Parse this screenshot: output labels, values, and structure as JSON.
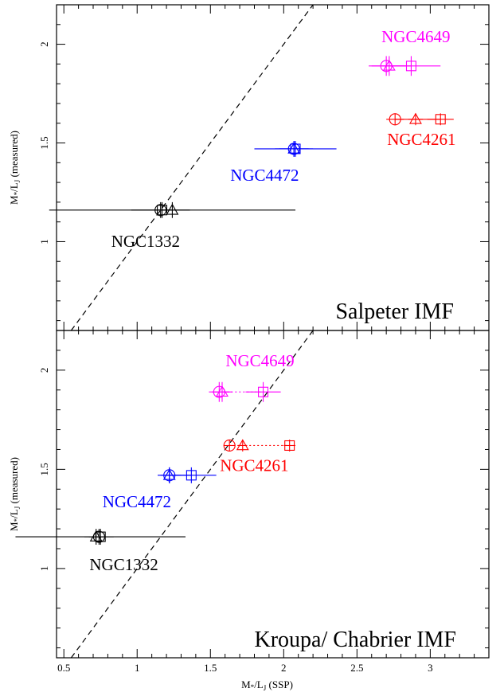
{
  "chart_data": [
    {
      "type": "scatter",
      "panel": "top",
      "label": "Salpeter IMF",
      "xlim": [
        0.45,
        3.4
      ],
      "ylim": [
        0.55,
        2.2
      ],
      "xticks": [
        0.5,
        1,
        1.5,
        2,
        2.5,
        3
      ],
      "yticks": [
        1,
        1.5,
        2
      ],
      "ytick_labels": [
        "1",
        "1.5",
        "2"
      ],
      "ylabel": "M*/LJ (measured)",
      "grid": false,
      "one_to_one_line": true,
      "galaxies": [
        {
          "name": "NGC4649",
          "color": "#ff00ff",
          "y": 1.89,
          "yerr": 0.05,
          "connector": "solid",
          "points": [
            {
              "marker": "circle",
              "x": 2.7,
              "xerr": 0.12
            },
            {
              "marker": "triangle",
              "x": 2.72,
              "xerr": 0.12
            },
            {
              "marker": "square",
              "x": 2.87,
              "xerr": 0.2
            }
          ]
        },
        {
          "name": "NGC4261",
          "color": "#ff0000",
          "y": 1.62,
          "yerr": 0.03,
          "connector": "solid",
          "points": [
            {
              "marker": "circle",
              "x": 2.76,
              "xerr": 0.06
            },
            {
              "marker": "triangle",
              "x": 2.9,
              "xerr": 0.05
            },
            {
              "marker": "square",
              "x": 3.07,
              "xerr": 0.09
            }
          ]
        },
        {
          "name": "NGC4472",
          "color": "#0000ff",
          "y": 1.47,
          "yerr": 0.04,
          "connector": "solid",
          "points": [
            {
              "marker": "circle",
              "x": 2.07,
              "xerr": 0.13
            },
            {
              "marker": "triangle",
              "x": 2.07,
              "xerr": 0.1
            },
            {
              "marker": "square",
              "x": 2.08,
              "xerr": 0.28
            }
          ]
        },
        {
          "name": "NGC1332",
          "color": "#000000",
          "y": 1.16,
          "yerr": 0.04,
          "connector": "solid",
          "points": [
            {
              "marker": "circle",
              "x": 1.16,
              "xerr": 0.2
            },
            {
              "marker": "triangle",
              "x": 1.24,
              "xerr": 0.84
            },
            {
              "marker": "square",
              "x": 1.17,
              "xerr": 0.05
            }
          ]
        }
      ]
    },
    {
      "type": "scatter",
      "panel": "bottom",
      "label": "Kroupa/ Chabrier IMF",
      "xlim": [
        0.45,
        3.4
      ],
      "ylim": [
        0.55,
        2.2
      ],
      "xticks": [
        0.5,
        1,
        1.5,
        2,
        2.5,
        3
      ],
      "xtick_labels": [
        "0.5",
        "1",
        "1.5",
        "2",
        "2.5",
        "3"
      ],
      "yticks": [
        1,
        1.5,
        2
      ],
      "ytick_labels": [
        "1",
        "1.5",
        "2"
      ],
      "xlabel": "M*/LJ (SSP)",
      "ylabel": "M*/LJ (measured)",
      "grid": false,
      "one_to_one_line": true,
      "galaxies": [
        {
          "name": "NGC4649",
          "color": "#ff00ff",
          "y": 1.89,
          "yerr": 0.05,
          "connector": "dotted",
          "points": [
            {
              "marker": "circle",
              "x": 1.56,
              "xerr": 0.07
            },
            {
              "marker": "triangle",
              "x": 1.58,
              "xerr": 0.07
            },
            {
              "marker": "square",
              "x": 1.86,
              "xerr": 0.12
            }
          ]
        },
        {
          "name": "NGC4261",
          "color": "#ff0000",
          "y": 1.62,
          "yerr": 0.03,
          "connector": "dotted",
          "points": [
            {
              "marker": "circle",
              "x": 1.63,
              "xerr": 0.04
            },
            {
              "marker": "triangle",
              "x": 1.72,
              "xerr": 0.03
            },
            {
              "marker": "square",
              "x": 2.04,
              "xerr": 0.04
            }
          ]
        },
        {
          "name": "NGC4472",
          "color": "#0000ff",
          "y": 1.47,
          "yerr": 0.04,
          "connector": "solid",
          "points": [
            {
              "marker": "circle",
              "x": 1.22,
              "xerr": 0.08
            },
            {
              "marker": "triangle",
              "x": 1.22,
              "xerr": 0.06
            },
            {
              "marker": "square",
              "x": 1.37,
              "xerr": 0.17
            }
          ]
        },
        {
          "name": "NGC1332",
          "color": "#000000",
          "y": 1.16,
          "yerr": 0.04,
          "connector": "solid",
          "points": [
            {
              "marker": "circle",
              "x": 0.74,
              "xerr": 0.1
            },
            {
              "marker": "triangle",
              "x": 0.72,
              "xerr": 0.05
            },
            {
              "marker": "square",
              "x": 0.75,
              "xerr": 0.58
            }
          ]
        }
      ]
    }
  ]
}
